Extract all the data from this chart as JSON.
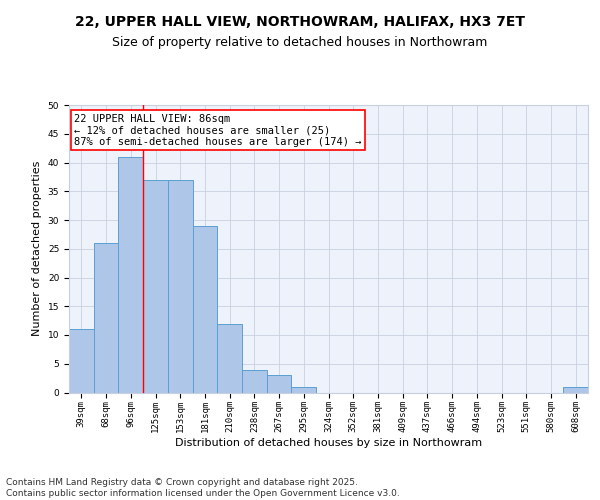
{
  "title1": "22, UPPER HALL VIEW, NORTHOWRAM, HALIFAX, HX3 7ET",
  "title2": "Size of property relative to detached houses in Northowram",
  "xlabel": "Distribution of detached houses by size in Northowram",
  "ylabel": "Number of detached properties",
  "categories": [
    "39sqm",
    "68sqm",
    "96sqm",
    "125sqm",
    "153sqm",
    "181sqm",
    "210sqm",
    "238sqm",
    "267sqm",
    "295sqm",
    "324sqm",
    "352sqm",
    "381sqm",
    "409sqm",
    "437sqm",
    "466sqm",
    "494sqm",
    "523sqm",
    "551sqm",
    "580sqm",
    "608sqm"
  ],
  "values": [
    11,
    26,
    41,
    37,
    37,
    29,
    12,
    4,
    3,
    1,
    0,
    0,
    0,
    0,
    0,
    0,
    0,
    0,
    0,
    0,
    1
  ],
  "bar_color": "#aec6e8",
  "bar_edge_color": "#5a9fd4",
  "red_line_index": 2,
  "annotation_box_text": "22 UPPER HALL VIEW: 86sqm\n← 12% of detached houses are smaller (25)\n87% of semi-detached houses are larger (174) →",
  "ylim": [
    0,
    50
  ],
  "yticks": [
    0,
    5,
    10,
    15,
    20,
    25,
    30,
    35,
    40,
    45,
    50
  ],
  "footer_text": "Contains HM Land Registry data © Crown copyright and database right 2025.\nContains public sector information licensed under the Open Government Licence v3.0.",
  "background_color": "#eef2fa",
  "grid_color": "#c8d0e0",
  "title_fontsize": 10,
  "subtitle_fontsize": 9,
  "axis_label_fontsize": 8,
  "tick_fontsize": 6.5,
  "annotation_fontsize": 7.5,
  "footer_fontsize": 6.5
}
